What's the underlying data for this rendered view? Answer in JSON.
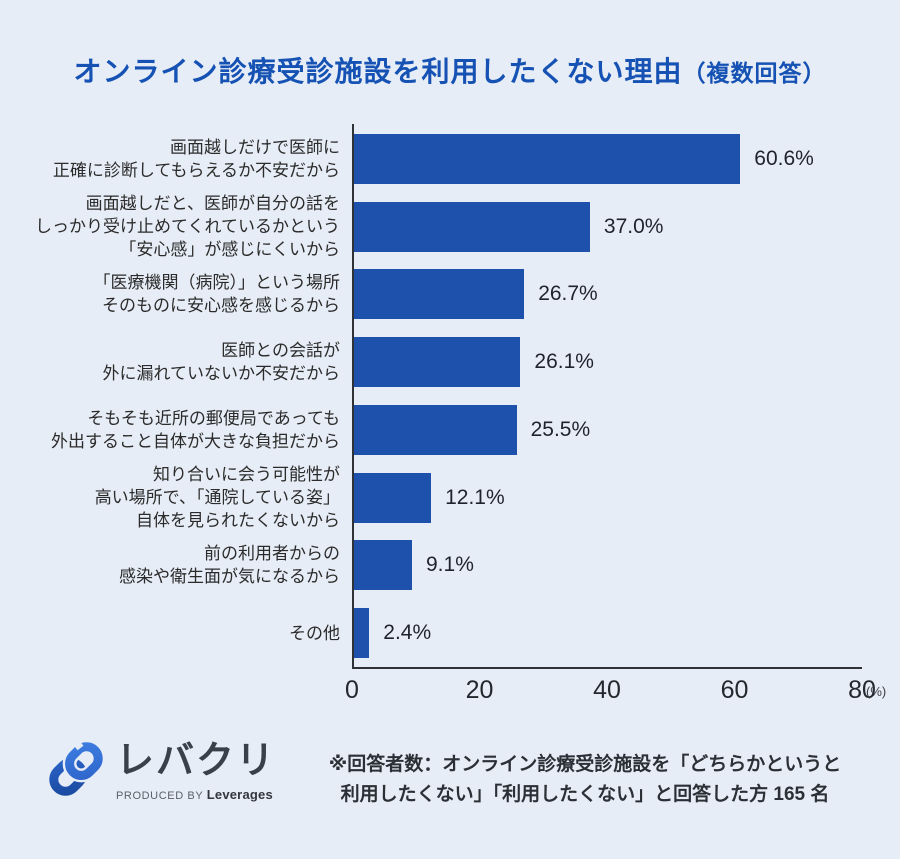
{
  "title": {
    "main": "オンライン診療受診施設を利用したくない理由",
    "sub": "（複数回答）"
  },
  "chart_data": {
    "type": "bar",
    "orientation": "horizontal",
    "title": "オンライン診療受診施設を利用したくない理由（複数回答）",
    "categories": [
      "画面越しだけで医師に正確に診断してもらえるか不安だから",
      "画面越しだと、医師が自分の話をしっかり受け止めてくれているかという「安心感」が感じにくいから",
      "「医療機関（病院）」という場所そのものに安心感を感じるから",
      "医師との会話が外に漏れていないか不安だから",
      "そもそも近所の郵便局であっても外出すること自体が大きな負担だから",
      "知り合いに会う可能性が高い場所で、「通院している姿」自体を見られたくないから",
      "前の利用者からの感染や衛生面が気になるから",
      "その他"
    ],
    "category_lines": [
      [
        "画面越しだけで医師に",
        "正確に診断してもらえるか不安だから"
      ],
      [
        "画面越しだと、医師が自分の話を",
        "しっかり受け止めてくれているかという",
        "「安心感」が感じにくいから"
      ],
      [
        "「医療機関（病院）」という場所",
        "そのものに安心感を感じるから"
      ],
      [
        "医師との会話が",
        "外に漏れていないか不安だから"
      ],
      [
        "そもそも近所の郵便局であっても",
        "外出すること自体が大きな負担だから"
      ],
      [
        "知り合いに会う可能性が",
        "高い場所で、「通院している姿」",
        "自体を見られたくないから"
      ],
      [
        "前の利用者からの",
        "感染や衛生面が気になるから"
      ],
      [
        "その他"
      ]
    ],
    "values": [
      60.6,
      37.0,
      26.7,
      26.1,
      25.5,
      12.1,
      9.1,
      2.4
    ],
    "value_labels": [
      "60.6%",
      "37.0%",
      "26.7%",
      "26.1%",
      "25.5%",
      "12.1%",
      "9.1%",
      "2.4%"
    ],
    "xlim": [
      0,
      80
    ],
    "x_ticks": [
      0,
      20,
      40,
      60,
      80
    ],
    "x_unit": "(%)",
    "grid": false,
    "legend": "none"
  },
  "colors": {
    "background": "#e7edf6",
    "bar": "#1d51ab",
    "title": "#1552b4",
    "axis": "#2f3338",
    "label_text": "#2b2b2b",
    "value_text": "#1e232e",
    "logo_dark_blue": "#1c55b4",
    "logo_light_blue": "#3a76d8"
  },
  "footer": {
    "logo": {
      "name": "レバクリ",
      "produced_by": "PRODUCED BY ",
      "company": "Leverages"
    },
    "note_line1": "※回答者数：オンライン診療受診施設を「どちらかというと",
    "note_line2": "利用したくない」「利用したくない」と回答した方 165 名"
  }
}
